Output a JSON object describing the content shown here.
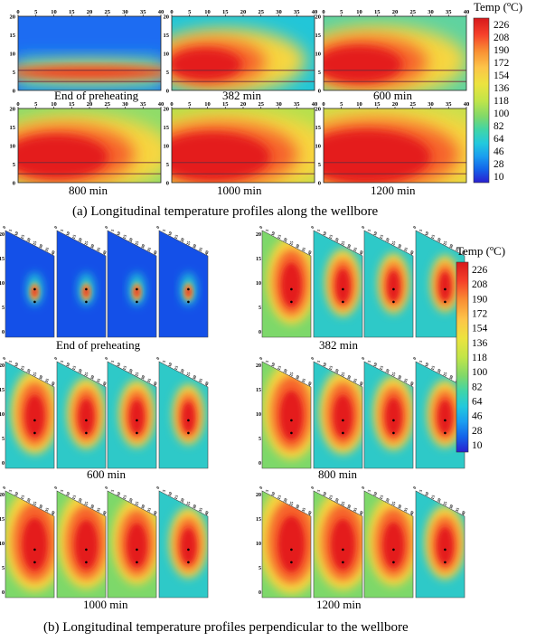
{
  "colorbar": {
    "title": "Temp (ºC)",
    "ticks": [
      "226",
      "208",
      "190",
      "172",
      "154",
      "136",
      "118",
      "100",
      "82",
      "64",
      "46",
      "28",
      "10"
    ],
    "stops": [
      "#d7191c",
      "#ef3b22",
      "#f6802e",
      "#fdb94a",
      "#f7dd3f",
      "#d7e83c",
      "#8fd85a",
      "#52d48a",
      "#2fd6c0",
      "#1fb4ea",
      "#1585ef",
      "#1450e8",
      "#2a1fd0"
    ]
  },
  "partA": {
    "caption": "(a) Longitudinal temperature profiles along the wellbore",
    "x_ticks": [
      "0",
      "5",
      "10",
      "15",
      "20",
      "25",
      "30",
      "35",
      "40"
    ],
    "y_ticks": [
      "20",
      "15",
      "10",
      "5",
      "0"
    ],
    "panels": [
      {
        "label": "End of preheating"
      },
      {
        "label": "382 min"
      },
      {
        "label": "600 min"
      },
      {
        "label": "800 min"
      },
      {
        "label": "1000 min"
      },
      {
        "label": "1200 min"
      }
    ]
  },
  "partB": {
    "caption": "(b) Longitudinal temperature profiles perpendicular to the wellbore",
    "y_ticks": [
      "20",
      "15",
      "10",
      "5",
      "0"
    ],
    "top_ticks": [
      "0",
      "5",
      "10",
      "15",
      "20",
      "25",
      "30",
      "35",
      "40"
    ],
    "panels": [
      {
        "label": "End of preheating"
      },
      {
        "label": "382 min"
      },
      {
        "label": "600 min"
      },
      {
        "label": "800 min"
      },
      {
        "label": "1000 min"
      },
      {
        "label": "1200 min"
      }
    ]
  }
}
